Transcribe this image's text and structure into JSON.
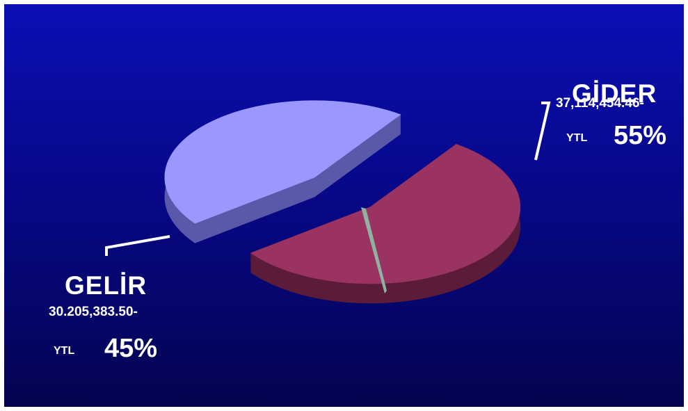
{
  "chart_data": {
    "type": "pie",
    "three_d": true,
    "slices": [
      {
        "label": "GİDER",
        "amount": "37,114,454.46-",
        "unit": "YTL",
        "percent": "55%",
        "value": 55,
        "color": "#9a3262",
        "side_color": "#5a1c38"
      },
      {
        "label": "GELİR",
        "amount": "30.205,383.50-",
        "unit": "YTL",
        "percent": "45%",
        "value": 45,
        "color": "#9a97ff",
        "side_color": "#5a58a8"
      }
    ]
  },
  "colors": {
    "background_top": "#0b0fb4",
    "background_bottom": "#030450",
    "thin_slice": "#8fb3a0",
    "leader_line": "#ffffff"
  }
}
